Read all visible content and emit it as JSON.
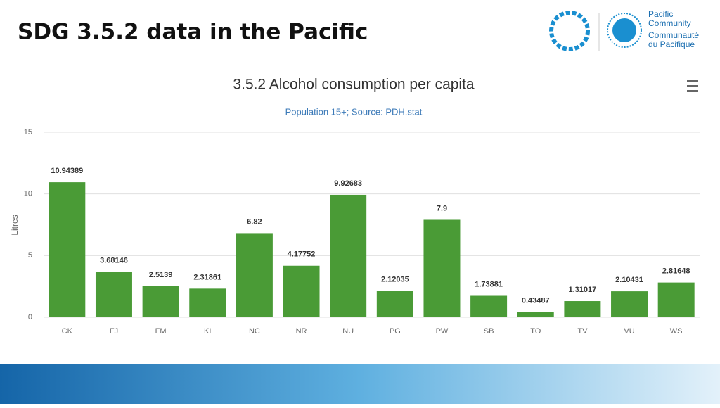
{
  "header": {
    "title": "SDG 3.5.2 data in the Pacific",
    "logo_text": [
      "Pacific",
      "Community",
      "Communauté",
      "du Pacifique"
    ]
  },
  "chart_data": {
    "type": "bar",
    "title": "3.5.2 Alcohol consumption per capita",
    "subtitle": "Population 15+; Source: PDH.stat",
    "y_label": "Litres",
    "categories": [
      "CK",
      "FJ",
      "FM",
      "KI",
      "NC",
      "NR",
      "NU",
      "PG",
      "PW",
      "SB",
      "TO",
      "TV",
      "VU",
      "WS"
    ],
    "values": [
      10.94389,
      3.68146,
      2.5139,
      2.31861,
      6.82,
      4.17752,
      9.92683,
      2.12035,
      7.9,
      1.73881,
      0.43487,
      1.31017,
      2.10431,
      2.81648
    ],
    "color": "#4a9b36",
    "ylim": [
      0,
      15
    ],
    "yticks": [
      0,
      5,
      10,
      15
    ],
    "grid": true
  }
}
